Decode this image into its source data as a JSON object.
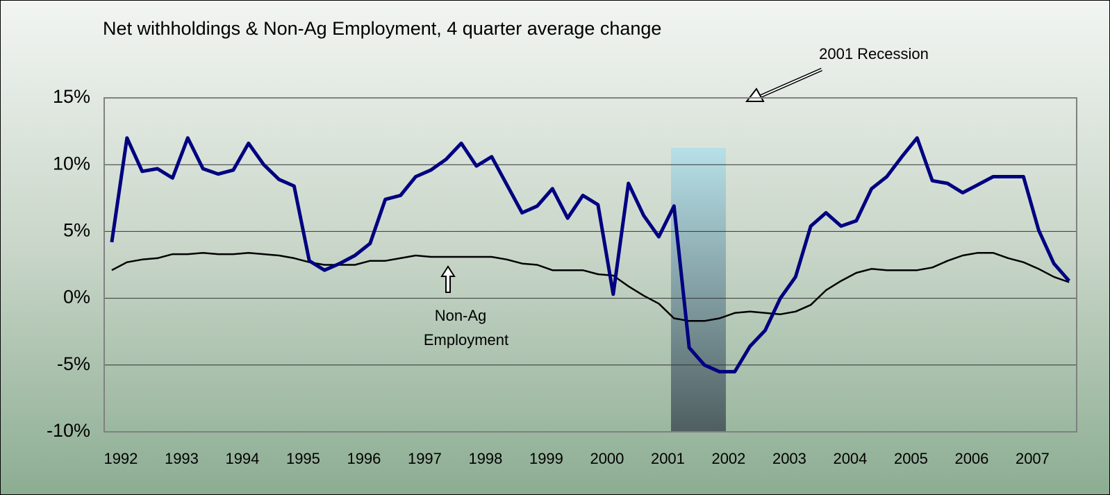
{
  "chart_data": {
    "type": "line",
    "title": "Net withholdings & Non-Ag Employment, 4 quarter average change",
    "annotations": [
      "2001 Recession",
      [
        "Non-Ag",
        "Employment"
      ]
    ],
    "categories": [
      "1992",
      null,
      null,
      null,
      "1993",
      null,
      null,
      null,
      "1994",
      null,
      null,
      null,
      "1995",
      null,
      null,
      null,
      "1996",
      null,
      null,
      null,
      "1997",
      null,
      null,
      null,
      "1998",
      null,
      null,
      null,
      "1999",
      null,
      null,
      null,
      "2000",
      null,
      null,
      null,
      "2001",
      null,
      null,
      null,
      "2002",
      null,
      null,
      null,
      "2003",
      null,
      null,
      null,
      "2004",
      null,
      null,
      null,
      "2005",
      null,
      null,
      null,
      "2006",
      null,
      null,
      null,
      "2007",
      null,
      null,
      null
    ],
    "series": [
      {
        "color": "#000080",
        "values": [
          4.2,
          12,
          9.5,
          9.7,
          9,
          12,
          9.7,
          9.3,
          9.6,
          11.6,
          10,
          8.9,
          8.4,
          2.8,
          2.1,
          2.6,
          3.2,
          4.1,
          7.4,
          7.7,
          9.1,
          9.6,
          10.4,
          11.6,
          9.9,
          10.6,
          8.5,
          6.4,
          6.9,
          8.2,
          6,
          7.7,
          7,
          0.3,
          8.6,
          6.2,
          4.6,
          6.9,
          -3.7,
          -5,
          -5.5,
          -5.5,
          -3.6,
          -2.4,
          0,
          1.6,
          5.4,
          6.4,
          5.4,
          5.8,
          8.2,
          9.1,
          10.6,
          12,
          8.8,
          8.6,
          7.9,
          8.5,
          9.1,
          9.1,
          9.1,
          5.1,
          2.6,
          1.3
        ]
      },
      {
        "color": "#000000",
        "values": [
          2.1,
          2.7,
          2.9,
          3.0,
          3.3,
          3.3,
          3.4,
          3.3,
          3.3,
          3.4,
          3.3,
          3.2,
          3.0,
          2.7,
          2.5,
          2.5,
          2.5,
          2.8,
          2.8,
          3.0,
          3.2,
          3.1,
          3.1,
          3.1,
          3.1,
          3.1,
          2.9,
          2.6,
          2.5,
          2.1,
          2.1,
          2.1,
          1.8,
          1.7,
          0.9,
          0.2,
          -0.4,
          -1.5,
          -1.7,
          -1.7,
          -1.5,
          -1.1,
          -1.0,
          -1.1,
          -1.2,
          -1.0,
          -0.5,
          0.6,
          1.3,
          1.9,
          2.2,
          2.1,
          2.1,
          2.1,
          2.3,
          2.8,
          3.2,
          3.4,
          3.4,
          3.0,
          2.7,
          2.2,
          1.6,
          1.2
        ]
      }
    ],
    "ylim": [
      -10,
      15
    ],
    "yticks": [
      {
        "value": -10,
        "label": "-10%"
      },
      {
        "value": -5,
        "label": "-5%"
      },
      {
        "value": 0,
        "label": "0%"
      },
      {
        "value": 5,
        "label": "5%"
      },
      {
        "value": 10,
        "label": "10%"
      },
      {
        "value": 15,
        "label": "15%"
      }
    ],
    "grid": true
  }
}
